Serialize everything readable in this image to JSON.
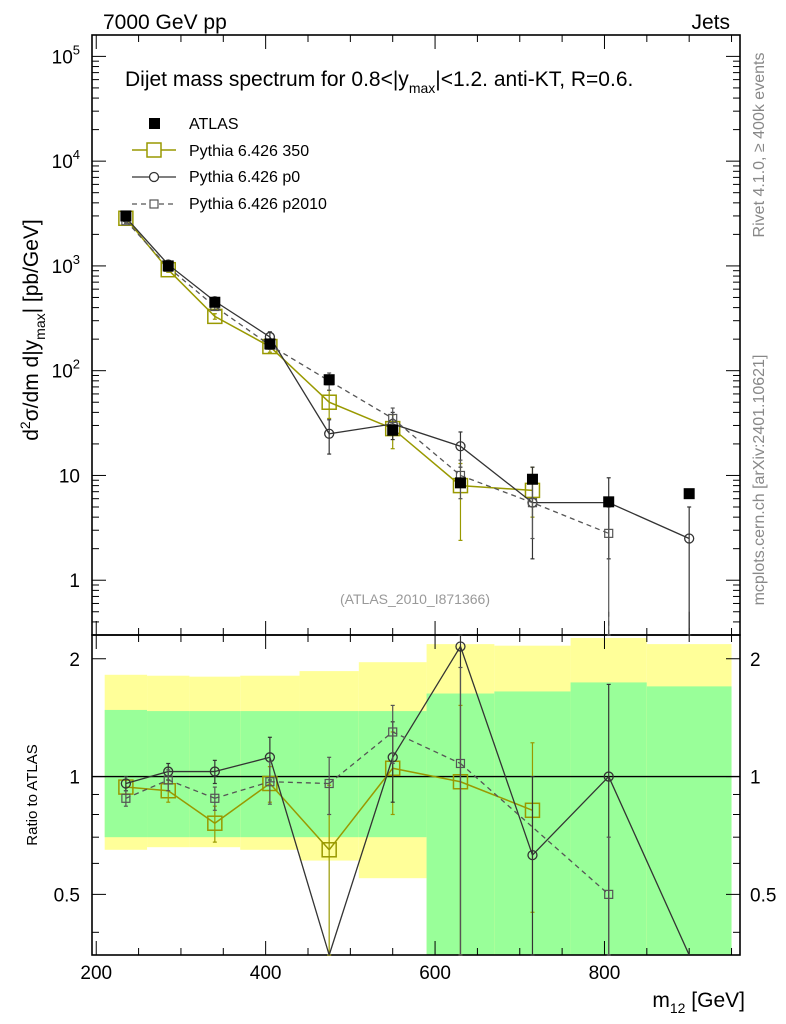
{
  "header": {
    "left": "7000 GeV pp",
    "right": "Jets"
  },
  "side_labels": {
    "top": "Rivet 4.1.0, ≥ 400k events",
    "bottom": "mcplots.cern.ch [arXiv:2401.10621]"
  },
  "colors": {
    "data": "#000000",
    "p350": "#999900",
    "p0": "#333333",
    "p2010": "#555555",
    "band_yellow": "#ffff99",
    "band_green": "#99ff99"
  },
  "chart_data": {
    "type": "line",
    "title_parts": {
      "pre": "Dijet mass spectrum for 0.8<|y",
      "sub": "max",
      "post": "|<1.2.  anti-KT, R=0.6."
    },
    "analysis_id": "(ATLAS_2010_I871366)",
    "xlabel": {
      "main": "m",
      "sub": "12",
      "unit": " [GeV]"
    },
    "ylabel_main": {
      "p1": "d",
      "sup": "2",
      "p2": "σ/dm d|y",
      "sub": "max",
      "p3": "| [pb/GeV]"
    },
    "ylabel_ratio": "Ratio to ATLAS",
    "xlim": [
      195,
      960
    ],
    "ylim_main": [
      0.3,
      160000
    ],
    "ylim_ratio": [
      0.35,
      2.3
    ],
    "x_ticks": [
      "200",
      "400",
      "600",
      "800"
    ],
    "y_ticks_main": [
      "1",
      "10",
      "10^2",
      "10^3",
      "10^4",
      "10^5"
    ],
    "y_ticks_ratio": [
      "0.5",
      "1",
      "2"
    ],
    "bins": [
      [
        210,
        260
      ],
      [
        260,
        310
      ],
      [
        310,
        370
      ],
      [
        370,
        440
      ],
      [
        440,
        510
      ],
      [
        510,
        590
      ],
      [
        590,
        670
      ],
      [
        670,
        760
      ],
      [
        760,
        850
      ],
      [
        850,
        950
      ]
    ],
    "bin_centers": [
      235,
      285,
      340,
      405,
      475,
      550,
      630,
      715,
      805,
      900
    ],
    "band_yellow": [
      [
        0.65,
        1.82
      ],
      [
        0.66,
        1.81
      ],
      [
        0.66,
        1.8
      ],
      [
        0.65,
        1.81
      ],
      [
        0.61,
        1.86
      ],
      [
        0.55,
        1.96
      ],
      [
        0.3,
        2.18
      ],
      [
        0.3,
        2.16
      ],
      [
        0.3,
        2.26
      ],
      [
        0.3,
        2.18
      ]
    ],
    "band_green": [
      [
        0.7,
        1.48
      ],
      [
        0.7,
        1.47
      ],
      [
        0.7,
        1.47
      ],
      [
        0.7,
        1.47
      ],
      [
        0.7,
        1.47
      ],
      [
        0.7,
        1.47
      ],
      [
        0.3,
        1.63
      ],
      [
        0.3,
        1.65
      ],
      [
        0.3,
        1.74
      ],
      [
        0.3,
        1.7
      ]
    ],
    "legend": [
      "ATLAS",
      "Pythia 6.426 350",
      "Pythia 6.426 p0",
      "Pythia 6.426 p2010"
    ],
    "series": [
      {
        "name": "ATLAS",
        "values": [
          3000,
          1000,
          450,
          180,
          82,
          27,
          8.5,
          9.2,
          5.6,
          6.7
        ]
      },
      {
        "name": "Pythia 6.426 350",
        "x": [
          235,
          285,
          340,
          405,
          475,
          550,
          630,
          715
        ],
        "values": [
          2850,
          920,
          330,
          170,
          50,
          28,
          8.0,
          7.2
        ],
        "errors": [
          [
            2700,
            3000
          ],
          [
            870,
            970
          ],
          [
            310,
            350
          ],
          [
            150,
            190
          ],
          [
            35,
            65
          ],
          [
            18,
            38
          ],
          [
            2.4,
            13
          ],
          [
            4.0,
            12
          ]
        ],
        "ratio": [
          0.94,
          0.92,
          0.76,
          0.96,
          0.65,
          1.05,
          0.97,
          0.82
        ],
        "ratio_errors": [
          [
            0.9,
            0.98
          ],
          [
            0.86,
            0.98
          ],
          [
            0.68,
            0.84
          ],
          [
            0.86,
            1.06
          ],
          [
            0.35,
            0.95
          ],
          [
            0.8,
            1.3
          ],
          [
            0.3,
            1.52
          ],
          [
            0.45,
            1.22
          ]
        ]
      },
      {
        "name": "Pythia 6.426 p0",
        "x": [
          235,
          285,
          340,
          405,
          475,
          550,
          630,
          715,
          805,
          900
        ],
        "values": [
          2900,
          1030,
          460,
          210,
          25,
          31,
          19,
          5.5,
          5.5,
          2.5
        ],
        "errors": [
          [
            2750,
            3050
          ],
          [
            990,
            1080
          ],
          [
            420,
            500
          ],
          [
            185,
            235
          ],
          [
            16,
            34
          ],
          [
            22,
            40
          ],
          [
            12,
            26
          ],
          [
            1.6,
            12
          ],
          [
            1.6,
            9.5
          ],
          [
            0.05,
            5
          ]
        ],
        "ratio": [
          0.96,
          1.03,
          1.03,
          1.12,
          0.2,
          1.12,
          2.15,
          0.63,
          1.0,
          0.2
        ],
        "ratio_errors": [
          [
            0.92,
            1.0
          ],
          [
            0.98,
            1.08
          ],
          [
            0.96,
            1.1
          ],
          [
            0.98,
            1.26
          ],
          null,
          [
            0.86,
            1.38
          ],
          [
            0.3,
            2.3
          ],
          [
            0.3,
            1.0
          ],
          [
            0.3,
            1.72
          ],
          null
        ]
      },
      {
        "name": "Pythia 6.426 p2010",
        "x": [
          235,
          285,
          340,
          405,
          475,
          550,
          630,
          715,
          805
        ],
        "values": [
          2700,
          970,
          410,
          175,
          80,
          35,
          10,
          5.5,
          2.8
        ],
        "errors": [
          [
            2550,
            2850
          ],
          [
            920,
            1020
          ],
          [
            380,
            440
          ],
          [
            160,
            190
          ],
          [
            65,
            95
          ],
          [
            26,
            44
          ],
          [
            6,
            14
          ],
          [
            2.5,
            8.5
          ],
          [
            0.05,
            5.5
          ]
        ],
        "ratio": [
          0.88,
          0.98,
          0.88,
          0.97,
          0.96,
          1.3,
          1.08,
          null,
          0.5
        ],
        "ratio_errors": [
          [
            0.84,
            0.92
          ],
          [
            0.92,
            1.04
          ],
          [
            0.82,
            0.94
          ],
          [
            0.85,
            1.09
          ],
          [
            0.8,
            1.12
          ],
          [
            1.08,
            1.52
          ],
          [
            0.3,
            1.9
          ],
          null,
          [
            0.3,
            0.7
          ]
        ]
      }
    ],
    "ratio_dashed_joins": [
      [
        630,
        1.08,
        805,
        0.5
      ]
    ]
  }
}
